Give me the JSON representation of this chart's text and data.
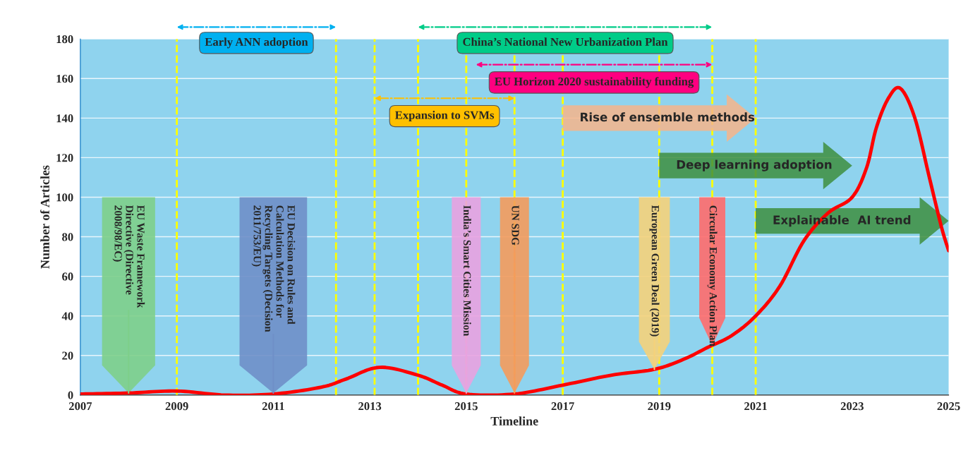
{
  "chart_data": {
    "type": "line",
    "xlabel": "Timeline",
    "ylabel": "Number of Articles",
    "x": [
      2007,
      2008,
      2009,
      2010,
      2011,
      2012,
      2012.5,
      2013.2,
      2014,
      2014.5,
      2015,
      2016,
      2017,
      2018,
      2018.9,
      2019.5,
      2020,
      2020.5,
      2021,
      2021.5,
      2022,
      2022.5,
      2023,
      2023.3,
      2023.5,
      2023.75,
      2024,
      2024.3,
      2024.6,
      2024.85,
      2025
    ],
    "series": [
      {
        "color": "#ff0000",
        "values": [
          0.5,
          1,
          2,
          0,
          0.5,
          4,
          8,
          14,
          10,
          5,
          0.5,
          0.5,
          5,
          10,
          13,
          18,
          24,
          30,
          40,
          55,
          78,
          92,
          100,
          115,
          135,
          150,
          155,
          140,
          110,
          85,
          73
        ]
      }
    ],
    "xlim": [
      2007,
      2025
    ],
    "xticks": [
      2007,
      2009,
      2011,
      2013,
      2015,
      2017,
      2019,
      2021,
      2023,
      2025
    ],
    "ylim": [
      0,
      180
    ],
    "yticks": [
      0,
      20,
      40,
      60,
      80,
      100,
      120,
      140,
      160,
      180
    ],
    "grid": "y",
    "marker": "none",
    "line_style": "solid",
    "ref_lines": [
      {
        "axis": "x",
        "value": 2009,
        "color": "#ffff00",
        "line_style": "dashed"
      },
      {
        "axis": "x",
        "value": 2012.3,
        "color": "#ffff00",
        "line_style": "dashed"
      },
      {
        "axis": "x",
        "value": 2013.1,
        "color": "#ffff00",
        "line_style": "dashed"
      },
      {
        "axis": "x",
        "value": 2014,
        "color": "#ffff00",
        "line_style": "dashed"
      },
      {
        "axis": "x",
        "value": 2015,
        "color": "#ffff00",
        "line_style": "dashed"
      },
      {
        "axis": "x",
        "value": 2016,
        "color": "#ffff00",
        "line_style": "dashed"
      },
      {
        "axis": "x",
        "value": 2017,
        "color": "#ffff00",
        "line_style": "dashed"
      },
      {
        "axis": "x",
        "value": 2019,
        "color": "#ffff00",
        "line_style": "dashed"
      },
      {
        "axis": "x",
        "value": 2020.1,
        "color": "#ffff00",
        "line_style": "dashed"
      },
      {
        "axis": "x",
        "value": 2021,
        "color": "#ffff00",
        "line_style": "dashed"
      }
    ],
    "annotations": [
      "Early ANN adoption",
      "China’s National New Urbanization Plan",
      "EU Horizon 2020 sustainability funding",
      {
        "text": "EU Waste Framework\nDirective (Directive\n2008/98/EC)",
        "x": 2008,
        "y": 1
      },
      {
        "text": "EU Decision on Rules and\nCalculation Methods for\nRecycling Targets (Decision\n2011/753/EU)",
        "x": 2011,
        "y": 1
      },
      {
        "text": "India’s Smart Cities Mission",
        "x": 2015,
        "y": 1
      },
      {
        "text": "UN SDG",
        "x": 2016,
        "y": 1
      },
      {
        "text": "European Green Deal (2019)",
        "x": 2018.9,
        "y": 13
      },
      {
        "text": "Circular Economy Action Plan",
        "x": 2020.1,
        "y": 25
      },
      {
        "text": "Rise of ensemble methods",
        "x": 2017,
        "y": 140
      },
      {
        "text": "Deep learning adoption",
        "x": 2019,
        "y": 116
      },
      {
        "text": "Explainable  AI trend",
        "x": 2021,
        "y": 88
      },
      {
        "text": "Expansion to SVMs",
        "x": 2013.1,
        "y": 150
      }
    ]
  }
}
